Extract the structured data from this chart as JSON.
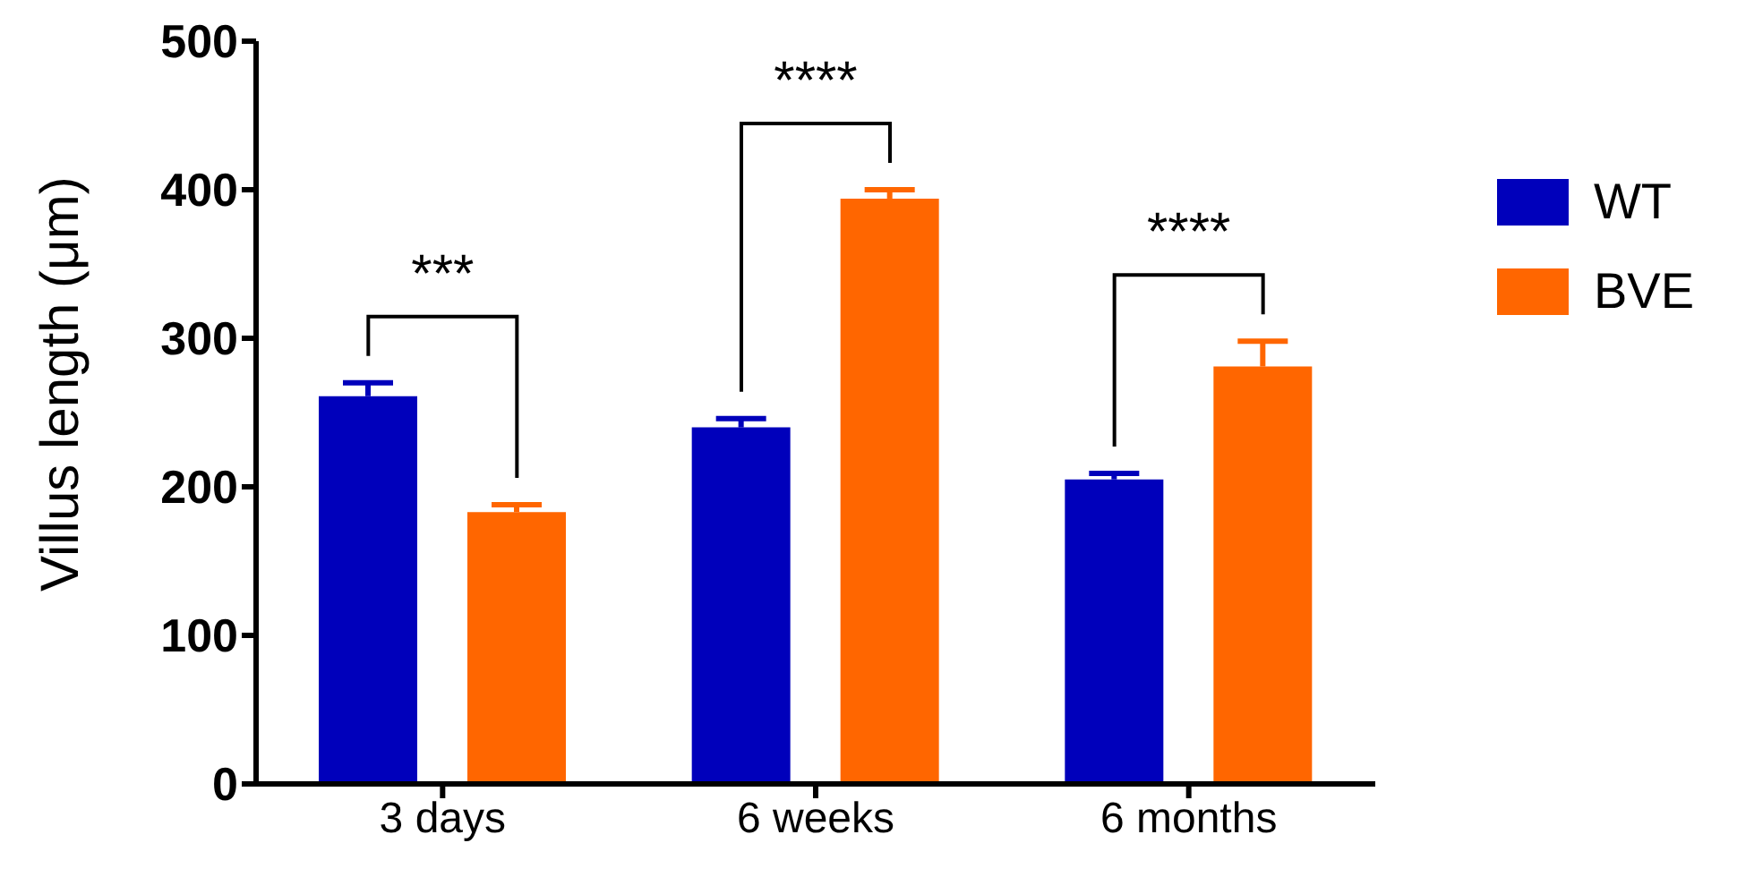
{
  "chart_data": {
    "type": "bar",
    "ylabel": "Villus length (μm)",
    "categories": [
      "3 days",
      "6 weeks",
      "6 months"
    ],
    "series": [
      {
        "name": "WT",
        "color": "#0000bb",
        "values": [
          261,
          240,
          205
        ],
        "errors": [
          [
            261,
            270
          ],
          [
            240,
            246
          ],
          [
            205,
            209
          ]
        ]
      },
      {
        "name": "BVE",
        "color": "#ff6600",
        "values": [
          183,
          394,
          281
        ],
        "errors": [
          [
            183,
            188
          ],
          [
            394,
            400
          ],
          [
            281,
            298
          ]
        ]
      }
    ],
    "ylim": [
      0,
      500
    ],
    "yticks": [
      0,
      100,
      200,
      300,
      400,
      500
    ],
    "grid": false,
    "legend": "top right",
    "annotations": [
      "***",
      "****",
      "****"
    ]
  }
}
